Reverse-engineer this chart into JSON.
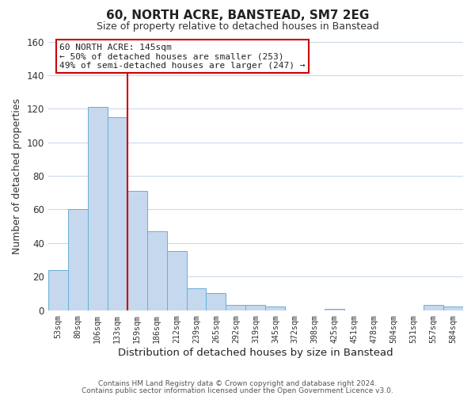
{
  "title": "60, NORTH ACRE, BANSTEAD, SM7 2EG",
  "subtitle": "Size of property relative to detached houses in Banstead",
  "xlabel": "Distribution of detached houses by size in Banstead",
  "ylabel": "Number of detached properties",
  "bar_labels": [
    "53sqm",
    "80sqm",
    "106sqm",
    "133sqm",
    "159sqm",
    "186sqm",
    "212sqm",
    "239sqm",
    "265sqm",
    "292sqm",
    "319sqm",
    "345sqm",
    "372sqm",
    "398sqm",
    "425sqm",
    "451sqm",
    "478sqm",
    "504sqm",
    "531sqm",
    "557sqm",
    "584sqm"
  ],
  "bar_values": [
    24,
    60,
    121,
    115,
    71,
    47,
    35,
    13,
    10,
    3,
    3,
    2,
    0,
    0,
    1,
    0,
    0,
    0,
    0,
    3,
    2
  ],
  "bar_color": "#c5d8ee",
  "bar_edge_color": "#6aaed6",
  "vline_x": 3.5,
  "vline_color": "#cc0000",
  "ylim": [
    0,
    160
  ],
  "yticks": [
    0,
    20,
    40,
    60,
    80,
    100,
    120,
    140,
    160
  ],
  "annotation_title": "60 NORTH ACRE: 145sqm",
  "annotation_line1": "← 50% of detached houses are smaller (253)",
  "annotation_line2": "49% of semi-detached houses are larger (247) →",
  "annotation_box_color": "#ffffff",
  "annotation_box_edge": "#cc0000",
  "footer1": "Contains HM Land Registry data © Crown copyright and database right 2024.",
  "footer2": "Contains public sector information licensed under the Open Government Licence v3.0.",
  "background_color": "#ffffff",
  "grid_color": "#ccd9ea"
}
